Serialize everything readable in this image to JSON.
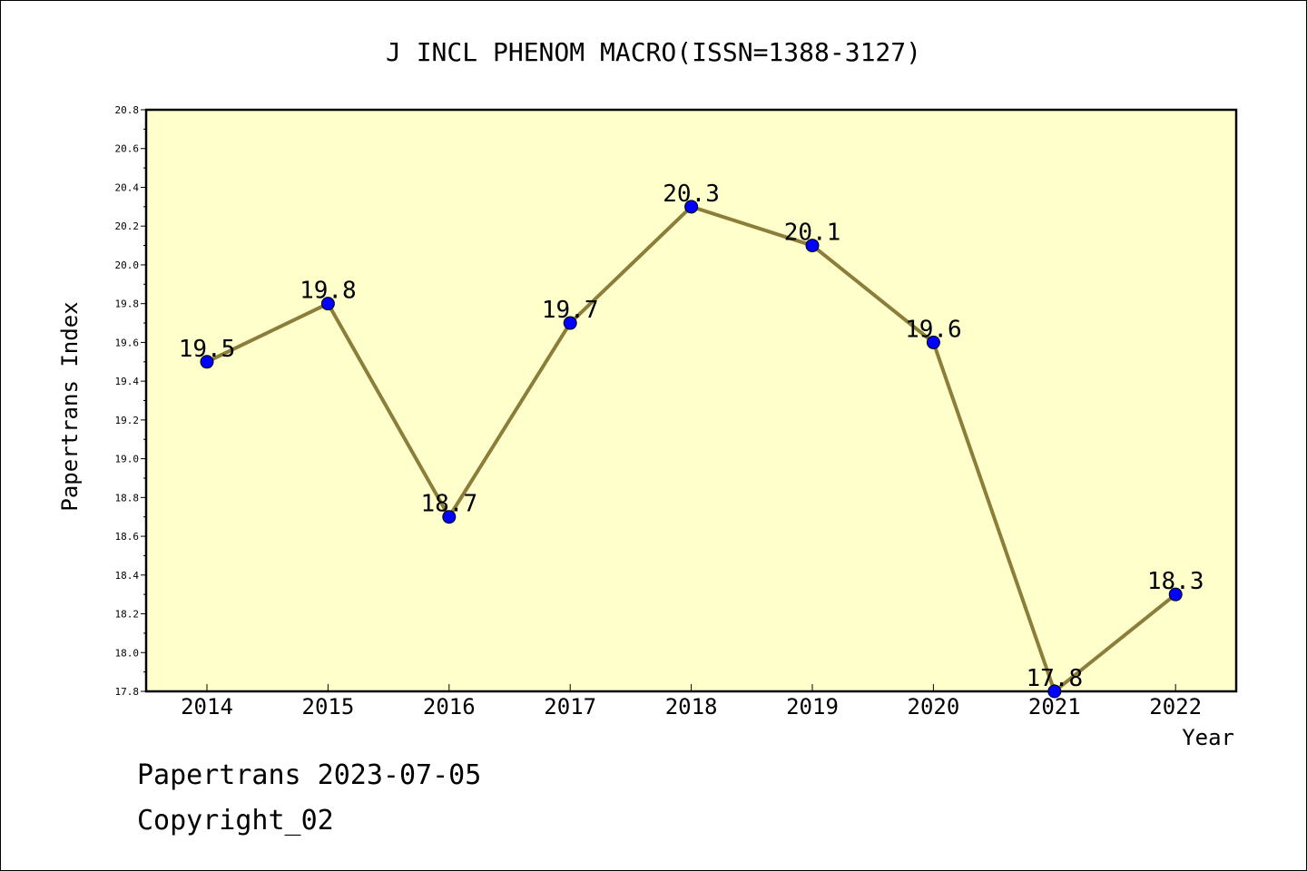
{
  "chart_data": {
    "type": "line",
    "title": "J INCL PHENOM MACRO(ISSN=1388-3127)",
    "xlabel": "Year",
    "ylabel": "Papertrans Index",
    "categories": [
      "2014",
      "2015",
      "2016",
      "2017",
      "2018",
      "2019",
      "2020",
      "2021",
      "2022"
    ],
    "series": [
      {
        "values": [
          19.5,
          19.8,
          18.7,
          19.7,
          20.3,
          20.1,
          19.6,
          17.8,
          18.3
        ]
      }
    ],
    "data_labels": [
      "19.5",
      "19.8",
      "18.7",
      "19.7",
      "20.3",
      "20.1",
      "19.6",
      "17.8",
      "18.3"
    ],
    "ylim": [
      17.8,
      20.8
    ],
    "y_ticks": [
      "17.8",
      "18.0",
      "18.2",
      "18.4",
      "18.6",
      "18.8",
      "19.0",
      "19.2",
      "19.4",
      "19.6",
      "19.8",
      "20.0",
      "20.2",
      "20.4",
      "20.6",
      "20.8"
    ],
    "grid": false,
    "colors": {
      "plot_background": "#ffffcc",
      "line": "#8b7d3a",
      "marker": "#0000ff",
      "axis": "#000000"
    }
  },
  "footer": {
    "date_line": "Papertrans 2023-07-05",
    "copyright": "Copyright_02"
  }
}
